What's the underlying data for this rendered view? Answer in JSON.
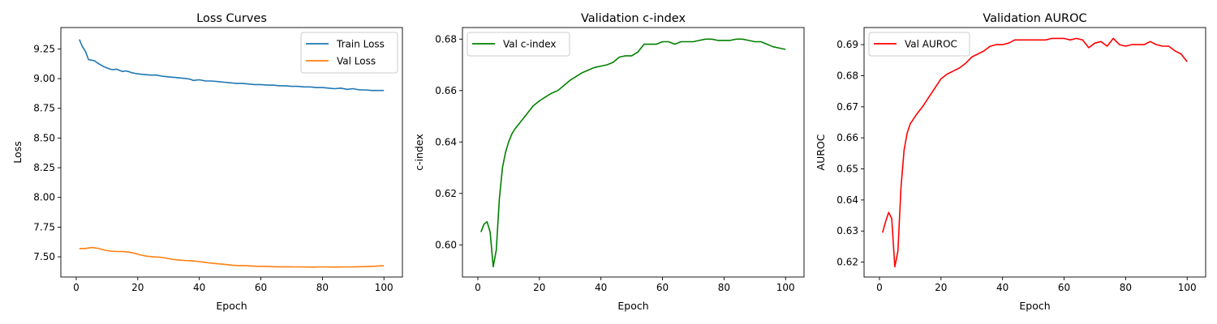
{
  "chart_data": [
    {
      "type": "line",
      "title": "Loss Curves",
      "xlabel": "Epoch",
      "ylabel": "Loss",
      "xlim": [
        -5,
        106
      ],
      "ylim": [
        7.33,
        9.43
      ],
      "xticks": [
        0,
        20,
        40,
        60,
        80,
        100
      ],
      "xtick_labels": [
        "0",
        "20",
        "40",
        "60",
        "80",
        "100"
      ],
      "yticks": [
        7.5,
        7.75,
        8.0,
        8.25,
        8.5,
        8.75,
        9.0,
        9.25
      ],
      "ytick_labels": [
        "7.50",
        "7.75",
        "8.00",
        "8.25",
        "8.50",
        "8.75",
        "9.00",
        "9.25"
      ],
      "grid": false,
      "legend": "upper-right",
      "series": [
        {
          "name": "Train Loss",
          "color": "#1f77b4",
          "x": [
            1,
            2,
            3,
            4,
            5,
            6,
            7,
            8,
            9,
            10,
            11,
            12,
            13,
            14,
            15,
            16,
            17,
            18,
            19,
            20,
            22,
            24,
            26,
            28,
            30,
            32,
            34,
            36,
            37,
            38,
            40,
            42,
            44,
            46,
            48,
            50,
            52,
            54,
            56,
            58,
            60,
            62,
            64,
            66,
            68,
            70,
            72,
            74,
            76,
            78,
            80,
            82,
            84,
            86,
            88,
            90,
            92,
            94,
            96,
            98,
            100
          ],
          "values": [
            9.33,
            9.27,
            9.23,
            9.16,
            9.155,
            9.15,
            9.13,
            9.115,
            9.1,
            9.09,
            9.08,
            9.075,
            9.08,
            9.07,
            9.06,
            9.065,
            9.06,
            9.05,
            9.045,
            9.04,
            9.035,
            9.03,
            9.03,
            9.02,
            9.015,
            9.01,
            9.005,
            9.0,
            8.995,
            8.985,
            8.99,
            8.98,
            8.98,
            8.975,
            8.97,
            8.965,
            8.96,
            8.96,
            8.955,
            8.95,
            8.95,
            8.945,
            8.945,
            8.94,
            8.94,
            8.935,
            8.935,
            8.93,
            8.93,
            8.925,
            8.925,
            8.92,
            8.915,
            8.92,
            8.91,
            8.915,
            8.905,
            8.905,
            8.9,
            8.9,
            8.9
          ]
        },
        {
          "name": "Val Loss",
          "color": "#ff7f0e",
          "x": [
            1,
            3,
            5,
            7,
            9,
            11,
            13,
            15,
            17,
            19,
            21,
            23,
            25,
            27,
            29,
            31,
            33,
            35,
            37,
            39,
            41,
            43,
            45,
            47,
            49,
            51,
            53,
            55,
            57,
            59,
            61,
            63,
            65,
            67,
            69,
            71,
            73,
            75,
            77,
            79,
            81,
            83,
            85,
            87,
            89,
            91,
            93,
            95,
            97,
            99,
            100
          ],
          "values": [
            7.57,
            7.57,
            7.578,
            7.572,
            7.558,
            7.548,
            7.545,
            7.545,
            7.54,
            7.53,
            7.515,
            7.505,
            7.5,
            7.497,
            7.49,
            7.48,
            7.474,
            7.47,
            7.467,
            7.463,
            7.457,
            7.449,
            7.444,
            7.44,
            7.434,
            7.428,
            7.426,
            7.426,
            7.423,
            7.42,
            7.42,
            7.418,
            7.416,
            7.416,
            7.416,
            7.415,
            7.415,
            7.414,
            7.413,
            7.415,
            7.415,
            7.414,
            7.414,
            7.415,
            7.415,
            7.416,
            7.417,
            7.419,
            7.421,
            7.424,
            7.425
          ]
        }
      ]
    },
    {
      "type": "line",
      "title": "Validation c-index",
      "xlabel": "Epoch",
      "ylabel": "c-index",
      "xlim": [
        -5,
        106
      ],
      "ylim": [
        0.5875,
        0.6845
      ],
      "xticks": [
        0,
        20,
        40,
        60,
        80,
        100
      ],
      "xtick_labels": [
        "0",
        "20",
        "40",
        "60",
        "80",
        "100"
      ],
      "yticks": [
        0.6,
        0.62,
        0.64,
        0.66,
        0.68
      ],
      "ytick_labels": [
        "0.60",
        "0.62",
        "0.64",
        "0.66",
        "0.68"
      ],
      "grid": false,
      "legend": "upper-left",
      "series": [
        {
          "name": "Val c-index",
          "color": "#008000",
          "x": [
            1,
            2,
            3,
            4,
            5,
            6,
            7,
            8,
            9,
            10,
            11,
            12,
            14,
            16,
            18,
            20,
            22,
            24,
            26,
            28,
            30,
            32,
            34,
            36,
            38,
            40,
            42,
            44,
            46,
            48,
            50,
            52,
            54,
            56,
            58,
            60,
            62,
            64,
            66,
            68,
            70,
            72,
            74,
            76,
            78,
            80,
            82,
            84,
            86,
            88,
            90,
            92,
            94,
            96,
            98,
            100
          ],
          "values": [
            0.605,
            0.608,
            0.609,
            0.605,
            0.5915,
            0.598,
            0.618,
            0.63,
            0.636,
            0.64,
            0.643,
            0.645,
            0.648,
            0.651,
            0.654,
            0.656,
            0.6575,
            0.659,
            0.66,
            0.662,
            0.664,
            0.6655,
            0.667,
            0.668,
            0.669,
            0.6695,
            0.67,
            0.671,
            0.673,
            0.6735,
            0.6735,
            0.675,
            0.678,
            0.678,
            0.678,
            0.679,
            0.679,
            0.678,
            0.679,
            0.679,
            0.679,
            0.6795,
            0.68,
            0.68,
            0.6795,
            0.6795,
            0.6795,
            0.68,
            0.68,
            0.6795,
            0.679,
            0.679,
            0.678,
            0.677,
            0.6765,
            0.676
          ]
        }
      ]
    },
    {
      "type": "line",
      "title": "Validation AUROC",
      "xlabel": "Epoch",
      "ylabel": "AUROC",
      "xlim": [
        -5,
        106
      ],
      "ylim": [
        0.6152,
        0.6955
      ],
      "xticks": [
        0,
        20,
        40,
        60,
        80,
        100
      ],
      "xtick_labels": [
        "0",
        "20",
        "40",
        "60",
        "80",
        "100"
      ],
      "yticks": [
        0.62,
        0.63,
        0.64,
        0.65,
        0.66,
        0.67,
        0.68,
        0.69
      ],
      "ytick_labels": [
        "0.62",
        "0.63",
        "0.64",
        "0.65",
        "0.66",
        "0.67",
        "0.68",
        "0.69"
      ],
      "grid": false,
      "legend": "upper-left",
      "series": [
        {
          "name": "Val AUROC",
          "color": "#ff0000",
          "x": [
            1,
            2,
            3,
            4,
            5,
            6,
            7,
            8,
            9,
            10,
            11,
            12,
            14,
            16,
            18,
            20,
            22,
            24,
            26,
            28,
            30,
            32,
            34,
            36,
            38,
            40,
            42,
            44,
            46,
            48,
            50,
            52,
            54,
            56,
            58,
            60,
            62,
            64,
            66,
            68,
            70,
            72,
            74,
            76,
            78,
            80,
            82,
            84,
            86,
            88,
            90,
            92,
            94,
            96,
            98,
            100
          ],
          "values": [
            0.6295,
            0.633,
            0.636,
            0.634,
            0.6185,
            0.6235,
            0.644,
            0.656,
            0.6615,
            0.6645,
            0.666,
            0.6675,
            0.67,
            0.673,
            0.676,
            0.679,
            0.6805,
            0.6815,
            0.6825,
            0.684,
            0.686,
            0.687,
            0.688,
            0.6895,
            0.69,
            0.69,
            0.6905,
            0.6915,
            0.6915,
            0.6915,
            0.6915,
            0.6915,
            0.6915,
            0.692,
            0.692,
            0.692,
            0.6915,
            0.692,
            0.6915,
            0.689,
            0.6905,
            0.691,
            0.6895,
            0.692,
            0.69,
            0.6895,
            0.69,
            0.69,
            0.69,
            0.691,
            0.69,
            0.6895,
            0.6895,
            0.688,
            0.687,
            0.6845
          ]
        }
      ]
    }
  ]
}
